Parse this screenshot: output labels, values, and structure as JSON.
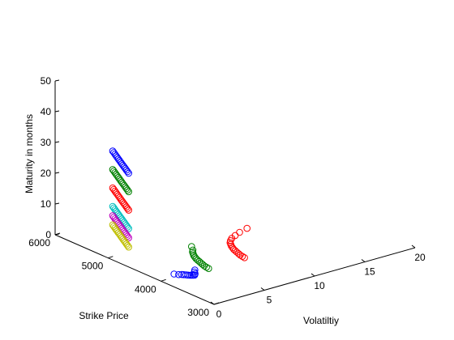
{
  "chart_data": {
    "type": "scatter",
    "projection": "3d",
    "title": "",
    "xlabel": "Volatiltiy",
    "ylabel": "Strike Price",
    "zlabel": "Maturity in months",
    "xlim": [
      0,
      20
    ],
    "ylim": [
      3000,
      6000
    ],
    "zlim": [
      0,
      50
    ],
    "xticks": [
      "0",
      "5",
      "10",
      "15",
      "20"
    ],
    "yticks": [
      "3000",
      "4000",
      "5000",
      "6000"
    ],
    "zticks": [
      "0",
      "10",
      "20",
      "30",
      "40",
      "50"
    ],
    "grid": false,
    "legend": "none",
    "marker": "open-circle",
    "series": [
      {
        "color": "#0000ff",
        "x": [
          0.2,
          0.35,
          0.5,
          0.65,
          0.8,
          0.95,
          1.1,
          1.25,
          1.4,
          1.55,
          1.7,
          1.85,
          2.0,
          2.15,
          2.3,
          0.5,
          0.7,
          0.9,
          1.0,
          1.1,
          1.2,
          1.3,
          1.4,
          1.5,
          1.6,
          1.8,
          2.0,
          2.3
        ],
        "y": [
          4650,
          4700,
          4750,
          4800,
          4850,
          4900,
          4950,
          5000,
          5050,
          5100,
          5150,
          5200,
          5250,
          5300,
          5350,
          3850,
          3800,
          3780,
          3760,
          3740,
          3720,
          3700,
          3690,
          3680,
          3670,
          3700,
          3750,
          3800
        ],
        "z": [
          30,
          30,
          30,
          30,
          30,
          30,
          30,
          30,
          30,
          30,
          30,
          30,
          30,
          30,
          30,
          3,
          3,
          3,
          3,
          3,
          3,
          3,
          3,
          3,
          3,
          3,
          3,
          3
        ]
      },
      {
        "color": "#008000",
        "x": [
          0.2,
          0.35,
          0.5,
          0.65,
          0.8,
          0.95,
          1.1,
          1.25,
          1.4,
          1.55,
          1.7,
          1.85,
          2.0,
          2.15,
          2.3,
          4.2,
          4.25,
          4.3,
          4.4,
          4.5,
          4.6,
          4.7,
          4.8,
          4.95,
          5.1,
          5.3,
          5.5,
          5.8,
          6.2
        ],
        "y": [
          4650,
          4700,
          4750,
          4800,
          4850,
          4900,
          4950,
          5000,
          5050,
          5100,
          5150,
          5200,
          5250,
          5300,
          5350,
          3900,
          3950,
          4000,
          4050,
          4100,
          4150,
          4200,
          4250,
          4300,
          4350,
          4400,
          4450,
          4500,
          4600
        ],
        "z": [
          24,
          24,
          24,
          24,
          24,
          24,
          24,
          24,
          24,
          24,
          24,
          24,
          24,
          24,
          24,
          1,
          1,
          1,
          1,
          1,
          1,
          1,
          1,
          1,
          1,
          1,
          1,
          1,
          1
        ]
      },
      {
        "color": "#ff0000",
        "x": [
          0.2,
          0.35,
          0.5,
          0.65,
          0.8,
          0.95,
          1.1,
          1.25,
          1.4,
          1.55,
          1.7,
          1.85,
          2.0,
          2.15,
          2.3,
          8.3,
          8.35,
          8.4,
          8.5,
          8.6,
          8.7,
          8.8,
          8.95,
          9.1,
          9.3,
          9.5,
          9.8,
          10.2,
          10.8,
          11.5,
          12.5
        ],
        "y": [
          4650,
          4700,
          4750,
          4800,
          4850,
          4900,
          4950,
          5000,
          5050,
          5100,
          5150,
          5200,
          5250,
          5300,
          5350,
          4000,
          4050,
          4100,
          4150,
          4200,
          4250,
          4300,
          4350,
          4400,
          4450,
          4500,
          4550,
          4600,
          4650,
          4700,
          4750
        ],
        "z": [
          18,
          18,
          18,
          18,
          18,
          18,
          18,
          18,
          18,
          18,
          18,
          18,
          18,
          18,
          18,
          0,
          0,
          0,
          0,
          0,
          0,
          0,
          0,
          0,
          0,
          0,
          0,
          0,
          0,
          0,
          0
        ]
      },
      {
        "color": "#00bfbf",
        "x": [
          0.2,
          0.35,
          0.5,
          0.65,
          0.8,
          0.95,
          1.1,
          1.25,
          1.4,
          1.55,
          1.7,
          1.85,
          2.0,
          2.15,
          2.3
        ],
        "y": [
          4650,
          4700,
          4750,
          4800,
          4850,
          4900,
          4950,
          5000,
          5050,
          5100,
          5150,
          5200,
          5250,
          5300,
          5350
        ],
        "z": [
          12,
          12,
          12,
          12,
          12,
          12,
          12,
          12,
          12,
          12,
          12,
          12,
          12,
          12,
          12
        ]
      },
      {
        "color": "#bf00bf",
        "x": [
          0.2,
          0.35,
          0.5,
          0.65,
          0.8,
          0.95,
          1.1,
          1.25,
          1.4,
          1.55,
          1.7,
          1.85,
          2.0,
          2.15,
          2.3
        ],
        "y": [
          4650,
          4700,
          4750,
          4800,
          4850,
          4900,
          4950,
          5000,
          5050,
          5100,
          5150,
          5200,
          5250,
          5300,
          5350
        ],
        "z": [
          9,
          9,
          9,
          9,
          9,
          9,
          9,
          9,
          9,
          9,
          9,
          9,
          9,
          9,
          9
        ]
      },
      {
        "color": "#bfbf00",
        "x": [
          0.2,
          0.35,
          0.5,
          0.65,
          0.8,
          0.95,
          1.1,
          1.25,
          1.4,
          1.55,
          1.7,
          1.85,
          2.0,
          2.15,
          2.3
        ],
        "y": [
          4650,
          4700,
          4750,
          4800,
          4850,
          4900,
          4950,
          5000,
          5050,
          5100,
          5150,
          5200,
          5250,
          5300,
          5350
        ],
        "z": [
          6,
          6,
          6,
          6,
          6,
          6,
          6,
          6,
          6,
          6,
          6,
          6,
          6,
          6,
          6
        ]
      }
    ]
  }
}
